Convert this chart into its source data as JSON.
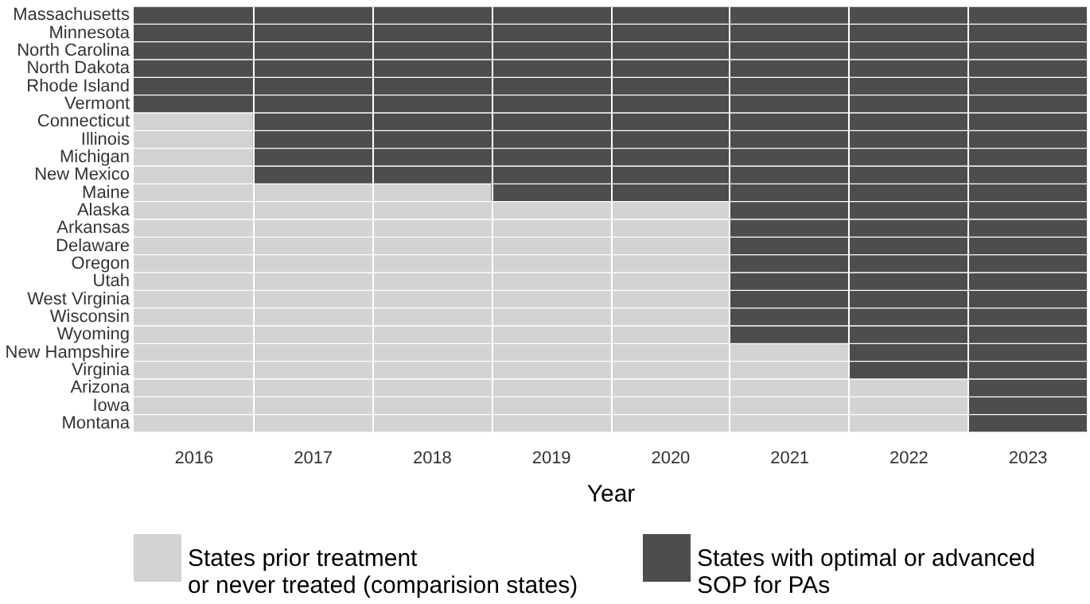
{
  "chart_data": {
    "type": "bar",
    "orientation": "horizontal",
    "xlabel": "Year",
    "categories": [
      "Massachusetts",
      "Minnesota",
      "North Carolina",
      "North Dakota",
      "Rhode Island",
      "Vermont",
      "Connecticut",
      "Illinois",
      "Michigan",
      "New Mexico",
      "Maine",
      "Alaska",
      "Arkansas",
      "Delaware",
      "Oregon",
      "Utah",
      "West Virginia",
      "Wisconsin",
      "Wyoming",
      "New Hampshire",
      "Virginia",
      "Arizona",
      "Iowa",
      "Montana"
    ],
    "series": [
      {
        "name": "States prior treatment\nor never treated (comparision states)",
        "color": "#d3d3d3",
        "base": [
          null,
          null,
          null,
          null,
          null,
          null,
          2015.5,
          2015.5,
          2015.5,
          2015.5,
          2015.5,
          2015.5,
          2015.5,
          2015.5,
          2015.5,
          2015.5,
          2015.5,
          2015.5,
          2015.5,
          2015.5,
          2015.5,
          2015.5,
          2015.5,
          2015.5
        ],
        "values": [
          null,
          null,
          null,
          null,
          null,
          null,
          1,
          1,
          1,
          1,
          3,
          5,
          5,
          5,
          5,
          5,
          5,
          5,
          5,
          6,
          6,
          7,
          7,
          7
        ]
      },
      {
        "name": "States with optimal or advanced\nSOP for PAs",
        "color": "#4d4d4d",
        "base": [
          2015.5,
          2015.5,
          2015.5,
          2015.5,
          2015.5,
          2015.5,
          2016.5,
          2016.5,
          2016.5,
          2016.5,
          2018.5,
          2020.5,
          2020.5,
          2020.5,
          2020.5,
          2020.5,
          2020.5,
          2020.5,
          2020.5,
          2021.5,
          2021.5,
          2022.5,
          2022.5,
          2022.5
        ],
        "values": [
          8,
          8,
          8,
          8,
          8,
          8,
          7,
          7,
          7,
          7,
          5,
          3,
          3,
          3,
          3,
          3,
          3,
          3,
          3,
          2,
          2,
          1,
          1,
          1
        ]
      }
    ],
    "xlim": [
      2015.5,
      2023.5
    ],
    "xticks": [
      2016,
      2017,
      2018,
      2019,
      2020,
      2021,
      2022,
      2023,
      {
        "value": 2016.5,
        "label": null
      },
      {
        "value": 2017.5,
        "label": null
      },
      {
        "value": 2018.5,
        "label": null
      },
      {
        "value": 2019.5,
        "label": null
      },
      {
        "value": 2020.5,
        "label": null
      },
      {
        "value": 2021.5,
        "label": null
      },
      {
        "value": 2022.5,
        "label": null
      }
    ],
    "grid": "x",
    "legend": "bottom"
  }
}
